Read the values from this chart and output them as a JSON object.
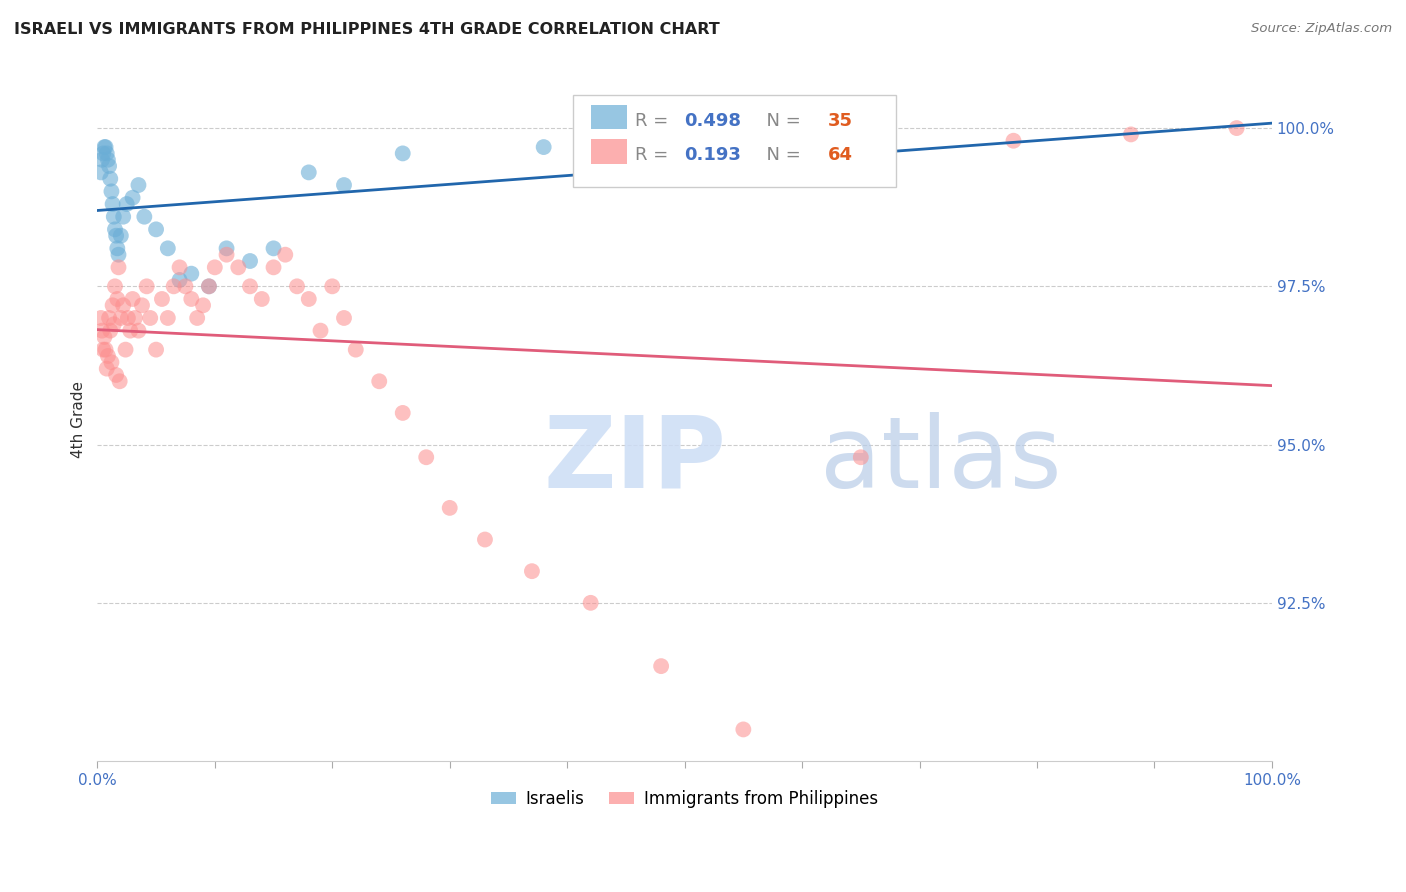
{
  "title": "ISRAELI VS IMMIGRANTS FROM PHILIPPINES 4TH GRADE CORRELATION CHART",
  "source": "Source: ZipAtlas.com",
  "ylabel": "4th Grade",
  "yticks": [
    90.0,
    92.5,
    95.0,
    97.5,
    100.0
  ],
  "ytick_labels": [
    "",
    "92.5%",
    "95.0%",
    "97.5%",
    "100.0%"
  ],
  "xlim": [
    0.0,
    100.0
  ],
  "ylim": [
    90.0,
    100.8
  ],
  "legend_blue_r": "0.498",
  "legend_blue_n": "35",
  "legend_pink_r": "0.193",
  "legend_pink_n": "64",
  "blue_color": "#6baed6",
  "pink_color": "#fc8d8d",
  "blue_line_color": "#2166ac",
  "pink_line_color": "#e05c7a",
  "title_color": "#222222",
  "axis_label_color": "#4472c4",
  "watermark_zip": "ZIP",
  "watermark_atlas": "atlas",
  "watermark_color_zip": "#c8d8f0",
  "watermark_color_atlas": "#b0c8e8",
  "israelis_x": [
    0.3,
    0.4,
    0.5,
    0.6,
    0.7,
    0.8,
    0.9,
    1.0,
    1.1,
    1.2,
    1.3,
    1.4,
    1.5,
    1.6,
    1.7,
    1.8,
    2.0,
    2.2,
    2.5,
    3.0,
    3.5,
    4.0,
    5.0,
    6.0,
    7.0,
    8.0,
    9.5,
    11.0,
    13.0,
    15.0,
    18.0,
    21.0,
    26.0,
    38.0,
    47.0
  ],
  "israelis_y": [
    99.3,
    99.5,
    99.6,
    99.7,
    99.7,
    99.6,
    99.5,
    99.4,
    99.2,
    99.0,
    98.8,
    98.6,
    98.4,
    98.3,
    98.1,
    98.0,
    98.3,
    98.6,
    98.8,
    98.9,
    99.1,
    98.6,
    98.4,
    98.1,
    97.6,
    97.7,
    97.5,
    98.1,
    97.9,
    98.1,
    99.3,
    99.1,
    99.6,
    99.7,
    99.9
  ],
  "philippines_x": [
    0.3,
    0.4,
    0.5,
    0.6,
    0.7,
    0.8,
    0.9,
    1.0,
    1.1,
    1.2,
    1.3,
    1.4,
    1.5,
    1.6,
    1.7,
    1.8,
    1.9,
    2.0,
    2.2,
    2.4,
    2.6,
    2.8,
    3.0,
    3.2,
    3.5,
    3.8,
    4.2,
    4.5,
    5.0,
    5.5,
    6.0,
    6.5,
    7.0,
    7.5,
    8.0,
    8.5,
    9.0,
    9.5,
    10.0,
    11.0,
    12.0,
    13.0,
    14.0,
    15.0,
    16.0,
    17.0,
    18.0,
    19.0,
    20.0,
    21.0,
    22.0,
    24.0,
    26.0,
    28.0,
    30.0,
    33.0,
    37.0,
    42.0,
    48.0,
    55.0,
    65.0,
    78.0,
    88.0,
    97.0
  ],
  "philippines_y": [
    97.0,
    96.8,
    96.5,
    96.7,
    96.5,
    96.2,
    96.4,
    97.0,
    96.8,
    96.3,
    97.2,
    96.9,
    97.5,
    96.1,
    97.3,
    97.8,
    96.0,
    97.0,
    97.2,
    96.5,
    97.0,
    96.8,
    97.3,
    97.0,
    96.8,
    97.2,
    97.5,
    97.0,
    96.5,
    97.3,
    97.0,
    97.5,
    97.8,
    97.5,
    97.3,
    97.0,
    97.2,
    97.5,
    97.8,
    98.0,
    97.8,
    97.5,
    97.3,
    97.8,
    98.0,
    97.5,
    97.3,
    96.8,
    97.5,
    97.0,
    96.5,
    96.0,
    95.5,
    94.8,
    94.0,
    93.5,
    93.0,
    92.5,
    91.5,
    90.5,
    94.8,
    99.8,
    99.9,
    100.0
  ]
}
